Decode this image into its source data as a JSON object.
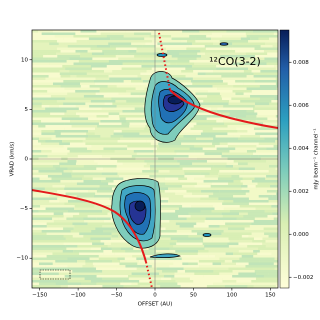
{
  "chart_data": {
    "type": "image",
    "xlabel": "OFFSET (AU)",
    "ylabel": "VRAD (km/s)",
    "annotation": "¹²CO(3-2)",
    "xlim": [
      -160,
      160
    ],
    "xticks": [
      {
        "value": -150,
        "label": "−150"
      },
      {
        "value": -100,
        "label": "−100"
      },
      {
        "value": -50,
        "label": "−50"
      },
      0,
      50,
      100,
      150
    ],
    "ylim": [
      -13,
      13
    ],
    "yticks": [
      {
        "value": -10,
        "label": "−10"
      },
      {
        "value": -5,
        "label": "−5"
      },
      0,
      5,
      10
    ],
    "colorbar": {
      "label": "mJy beam⁻¹ channel⁻¹",
      "lim": [
        -0.0025,
        0.0095
      ],
      "ticks": [
        {
          "value": -0.002,
          "label": "−0.002"
        },
        {
          "value": 0,
          "label": "0.000"
        },
        {
          "value": 0.002,
          "label": "0.002"
        },
        {
          "value": 0.004,
          "label": "0.004"
        },
        {
          "value": 0.006,
          "label": "0.006"
        },
        {
          "value": 0.008,
          "label": "0.008"
        }
      ]
    }
  }
}
